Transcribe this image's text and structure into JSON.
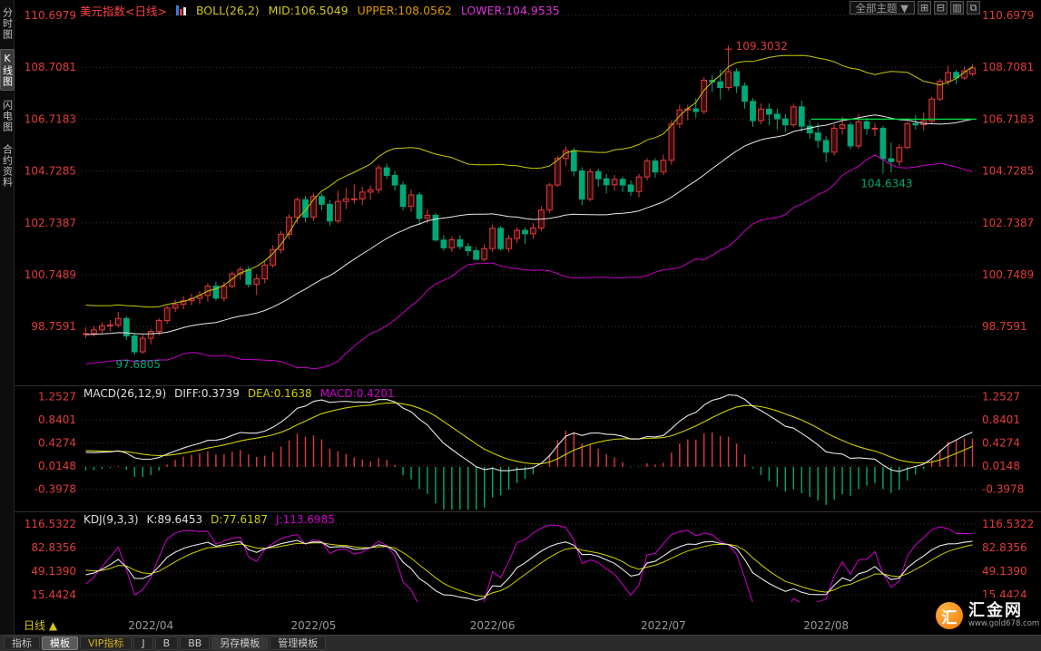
{
  "sidebar": {
    "items": [
      {
        "label": "分时图",
        "active": false
      },
      {
        "label": "K线图",
        "active": true
      },
      {
        "label": "闪电图",
        "active": false
      },
      {
        "label": "合约资料",
        "active": false
      }
    ]
  },
  "header": {
    "title": "美元指数<日线>",
    "boll": "BOLL(26,2)",
    "mid": "MID:106.5049",
    "upper": "UPPER:108.0562",
    "lower": "LOWER:104.9535",
    "theme": "全部主题 ▼",
    "window_icons": [
      {
        "name": "quad-grid",
        "glyph": "⊞"
      },
      {
        "name": "split-horizontal",
        "glyph": "⊟"
      },
      {
        "name": "panel-list",
        "glyph": "▥"
      },
      {
        "name": "new-window",
        "glyph": "⧉"
      }
    ]
  },
  "main_chart": {
    "y_labels": [
      "110.6979",
      "108.7081",
      "106.7183",
      "104.7285",
      "102.7387",
      "100.7489",
      "98.7591"
    ]
  },
  "macd": {
    "label": "MACD(26,12,9)",
    "diff": "DIFF:0.3739",
    "dea": "DEA:0.1638",
    "macd": "MACD:0.4201",
    "y_labels": [
      "1.2527",
      "0.8401",
      "0.4274",
      "0.0148",
      "-0.3978"
    ]
  },
  "kdj": {
    "label": "KDJ(9,3,3)",
    "k": "K:89.6453",
    "d": "D:77.6187",
    "j": "J:113.6985",
    "y_labels": [
      "116.5322",
      "82.8356",
      "49.1390",
      "15.4424"
    ]
  },
  "x_axis": {
    "labels": [
      "2022/04",
      "2022/05",
      "2022/06",
      "2022/07",
      "2022/08"
    ]
  },
  "bottom_bar": {
    "period": "日线 ▲",
    "tabs": [
      {
        "label": "指标"
      },
      {
        "label": "模板",
        "active": true
      },
      {
        "label": "VIP指标",
        "vip": true
      },
      {
        "label": "J"
      },
      {
        "label": "B"
      },
      {
        "label": "BB"
      },
      {
        "label": "另存模板",
        "raised": true
      },
      {
        "label": "管理模板"
      }
    ]
  },
  "logo": {
    "icon_char": "汇",
    "name": "汇金网",
    "url": "www.gold678.com"
  },
  "chart_data": {
    "type": "candlestick",
    "symbol": "美元指数",
    "period": "日线",
    "ylim": [
      96.5,
      111.2
    ],
    "visible_from": 15,
    "indicators": {
      "boll": {
        "period": 26,
        "width": 2,
        "mid": 106.5049,
        "upper": 108.0562,
        "lower": 104.9535
      },
      "macd": {
        "short": 12,
        "long": 26,
        "signal": 9,
        "diff": 0.3739,
        "dea": 0.1638,
        "macd": 0.4201
      },
      "kdj": {
        "period": 9,
        "k": 89.6453,
        "d": 77.6187,
        "j": 113.6985
      }
    },
    "annotations": [
      {
        "type": "high",
        "date": "2022-07-14",
        "text": "109.3032"
      },
      {
        "type": "low",
        "date": "2022-08-10",
        "text": "104.6343"
      },
      {
        "type": "low",
        "date": "2022-03-30",
        "text": "97.6805"
      },
      {
        "type": "hline",
        "value": 106.7183,
        "from_frac": 0.815,
        "to_frac": 1.0
      }
    ],
    "colors": {
      "up": "#e03a3a",
      "up_fill": "#3a0d0d",
      "down": "#00a878",
      "boll_mid": "#e8e8e8",
      "boll_upper": "#c8c800",
      "boll_lower": "#c800c8",
      "diff": "#e8e8e8",
      "dea": "#d0d000",
      "k": "#e8e8e8",
      "d": "#d0d000",
      "j": "#d000d0",
      "axis": "#e23b3b",
      "grid": "#4a2e2e",
      "date": "#9a9a9a",
      "hline": "#00d84a"
    },
    "ohlc": [
      [
        "2022-03-01",
        96.7,
        97.5,
        96.6,
        97.41
      ],
      [
        "2022-03-02",
        97.41,
        97.62,
        97.1,
        97.38
      ],
      [
        "2022-03-03",
        97.38,
        97.92,
        97.25,
        97.79
      ],
      [
        "2022-03-04",
        97.79,
        98.72,
        97.7,
        98.65
      ],
      [
        "2022-03-07",
        98.65,
        99.42,
        98.55,
        99.29
      ],
      [
        "2022-03-08",
        99.29,
        99.47,
        98.85,
        99.06
      ],
      [
        "2022-03-09",
        99.06,
        99.12,
        97.9,
        97.99
      ],
      [
        "2022-03-10",
        97.99,
        98.62,
        97.86,
        98.51
      ],
      [
        "2022-03-11",
        98.51,
        99.22,
        98.42,
        99.12
      ],
      [
        "2022-03-14",
        99.12,
        99.27,
        98.86,
        99.01
      ],
      [
        "2022-03-15",
        99.01,
        99.17,
        98.76,
        98.95
      ],
      [
        "2022-03-16",
        98.95,
        99.07,
        98.42,
        98.62
      ],
      [
        "2022-03-17",
        98.62,
        98.77,
        97.96,
        98.23
      ],
      [
        "2022-03-18",
        98.23,
        98.47,
        98.02,
        98.23
      ],
      [
        "2022-03-21",
        98.23,
        98.62,
        98.12,
        98.49
      ],
      [
        "2022-03-22",
        98.49,
        98.72,
        98.32,
        98.49
      ],
      [
        "2022-03-23",
        98.49,
        98.78,
        98.38,
        98.63
      ],
      [
        "2022-03-24",
        98.63,
        98.92,
        98.5,
        98.79
      ],
      [
        "2022-03-25",
        98.79,
        99.02,
        98.58,
        98.82
      ],
      [
        "2022-03-28",
        98.82,
        99.32,
        98.72,
        99.07
      ],
      [
        "2022-03-29",
        99.07,
        99.15,
        98.25,
        98.4
      ],
      [
        "2022-03-30",
        98.4,
        98.52,
        97.68,
        97.79
      ],
      [
        "2022-03-31",
        97.79,
        98.45,
        97.72,
        98.31
      ],
      [
        "2022-04-01",
        98.31,
        98.65,
        98.08,
        98.57
      ],
      [
        "2022-04-04",
        98.57,
        99.08,
        98.42,
        98.99
      ],
      [
        "2022-04-05",
        98.99,
        99.56,
        98.86,
        99.47
      ],
      [
        "2022-04-06",
        99.47,
        99.8,
        99.32,
        99.61
      ],
      [
        "2022-04-07",
        99.61,
        99.92,
        99.42,
        99.75
      ],
      [
        "2022-04-08",
        99.75,
        100.02,
        99.57,
        99.84
      ],
      [
        "2022-04-11",
        99.84,
        100.12,
        99.62,
        99.95
      ],
      [
        "2022-04-12",
        99.95,
        100.42,
        99.72,
        100.31
      ],
      [
        "2022-04-13",
        100.31,
        100.48,
        99.76,
        99.85
      ],
      [
        "2022-04-14",
        99.85,
        100.47,
        99.72,
        100.31
      ],
      [
        "2022-04-18",
        100.31,
        100.88,
        100.22,
        100.78
      ],
      [
        "2022-04-19",
        100.78,
        101.05,
        100.56,
        100.95
      ],
      [
        "2022-04-20",
        100.95,
        101.08,
        100.26,
        100.38
      ],
      [
        "2022-04-21",
        100.38,
        100.78,
        99.97,
        100.59
      ],
      [
        "2022-04-22",
        100.59,
        101.25,
        100.42,
        101.12
      ],
      [
        "2022-04-25",
        101.12,
        101.88,
        101.02,
        101.71
      ],
      [
        "2022-04-26",
        101.71,
        102.42,
        101.56,
        102.3
      ],
      [
        "2022-04-27",
        102.3,
        103.08,
        102.12,
        102.95
      ],
      [
        "2022-04-28",
        102.95,
        103.72,
        102.72,
        103.63
      ],
      [
        "2022-04-29",
        103.63,
        103.77,
        102.76,
        102.96
      ],
      [
        "2022-05-02",
        102.96,
        103.88,
        102.82,
        103.75
      ],
      [
        "2022-05-03",
        103.75,
        103.87,
        103.22,
        103.45
      ],
      [
        "2022-05-04",
        103.45,
        103.62,
        102.62,
        102.81
      ],
      [
        "2022-05-05",
        102.81,
        103.97,
        102.72,
        103.56
      ],
      [
        "2022-05-06",
        103.56,
        104.07,
        103.27,
        103.66
      ],
      [
        "2022-05-09",
        103.66,
        104.22,
        103.47,
        103.66
      ],
      [
        "2022-05-10",
        103.66,
        104.12,
        103.42,
        103.92
      ],
      [
        "2022-05-11",
        103.92,
        104.17,
        103.62,
        104.01
      ],
      [
        "2022-05-12",
        104.01,
        104.97,
        103.87,
        104.85
      ],
      [
        "2022-05-13",
        104.85,
        105.01,
        104.42,
        104.56
      ],
      [
        "2022-05-16",
        104.56,
        104.72,
        103.97,
        104.19
      ],
      [
        "2022-05-17",
        104.19,
        104.32,
        103.22,
        103.37
      ],
      [
        "2022-05-18",
        103.37,
        104.02,
        103.17,
        103.81
      ],
      [
        "2022-05-19",
        103.81,
        103.92,
        102.67,
        102.91
      ],
      [
        "2022-05-20",
        102.91,
        103.27,
        102.72,
        103.03
      ],
      [
        "2022-05-23",
        103.03,
        103.12,
        102.02,
        102.08
      ],
      [
        "2022-05-24",
        102.08,
        102.27,
        101.67,
        101.78
      ],
      [
        "2022-05-25",
        101.78,
        102.22,
        101.62,
        102.09
      ],
      [
        "2022-05-26",
        102.09,
        102.27,
        101.72,
        101.83
      ],
      [
        "2022-05-27",
        101.83,
        101.97,
        101.47,
        101.67
      ],
      [
        "2022-05-30",
        101.67,
        101.82,
        101.32,
        101.34
      ],
      [
        "2022-05-31",
        101.34,
        101.92,
        101.27,
        101.75
      ],
      [
        "2022-06-01",
        101.75,
        102.67,
        101.62,
        102.53
      ],
      [
        "2022-06-02",
        102.53,
        102.62,
        101.67,
        101.75
      ],
      [
        "2022-06-03",
        101.75,
        102.27,
        101.62,
        102.14
      ],
      [
        "2022-06-06",
        102.14,
        102.57,
        101.97,
        102.45
      ],
      [
        "2022-06-07",
        102.45,
        102.57,
        101.92,
        102.32
      ],
      [
        "2022-06-08",
        102.32,
        102.72,
        102.12,
        102.54
      ],
      [
        "2022-06-09",
        102.54,
        103.37,
        102.42,
        103.23
      ],
      [
        "2022-06-10",
        103.23,
        104.27,
        103.12,
        104.19
      ],
      [
        "2022-06-13",
        104.19,
        105.32,
        104.12,
        105.21
      ],
      [
        "2022-06-14",
        105.21,
        105.67,
        104.92,
        105.51
      ],
      [
        "2022-06-15",
        105.51,
        105.62,
        104.52,
        104.73
      ],
      [
        "2022-06-16",
        104.73,
        104.87,
        103.42,
        103.65
      ],
      [
        "2022-06-17",
        103.65,
        104.82,
        103.57,
        104.7
      ],
      [
        "2022-06-21",
        104.7,
        104.82,
        104.12,
        104.43
      ],
      [
        "2022-06-22",
        104.43,
        104.62,
        103.87,
        104.2
      ],
      [
        "2022-06-23",
        104.2,
        104.57,
        103.97,
        104.41
      ],
      [
        "2022-06-24",
        104.41,
        104.52,
        103.92,
        104.19
      ],
      [
        "2022-06-27",
        104.19,
        104.37,
        103.77,
        103.94
      ],
      [
        "2022-06-28",
        103.94,
        104.62,
        103.72,
        104.5
      ],
      [
        "2022-06-29",
        104.5,
        105.22,
        104.37,
        105.11
      ],
      [
        "2022-06-30",
        105.11,
        105.22,
        104.47,
        104.69
      ],
      [
        "2022-07-01",
        104.69,
        105.37,
        104.57,
        105.14
      ],
      [
        "2022-07-05",
        105.14,
        106.67,
        104.97,
        106.53
      ],
      [
        "2022-07-06",
        106.53,
        107.27,
        106.37,
        107.07
      ],
      [
        "2022-07-07",
        107.07,
        107.27,
        106.67,
        107.11
      ],
      [
        "2022-07-08",
        107.11,
        107.52,
        106.77,
        107.01
      ],
      [
        "2022-07-11",
        107.01,
        108.32,
        106.92,
        108.21
      ],
      [
        "2022-07-12",
        108.21,
        108.42,
        107.77,
        108.15
      ],
      [
        "2022-07-13",
        108.15,
        108.62,
        107.47,
        107.93
      ],
      [
        "2022-07-14",
        107.93,
        109.3,
        107.82,
        108.54
      ],
      [
        "2022-07-15",
        108.54,
        108.67,
        107.72,
        107.99
      ],
      [
        "2022-07-18",
        107.99,
        108.12,
        107.12,
        107.4
      ],
      [
        "2022-07-19",
        107.4,
        107.52,
        106.42,
        106.66
      ],
      [
        "2022-07-20",
        106.66,
        107.32,
        106.52,
        107.1
      ],
      [
        "2022-07-21",
        107.1,
        107.32,
        106.47,
        106.91
      ],
      [
        "2022-07-22",
        106.91,
        107.12,
        106.32,
        106.73
      ],
      [
        "2022-07-25",
        106.73,
        106.92,
        106.22,
        106.5
      ],
      [
        "2022-07-26",
        106.5,
        107.32,
        106.42,
        107.19
      ],
      [
        "2022-07-27",
        107.19,
        107.42,
        106.22,
        106.45
      ],
      [
        "2022-07-28",
        106.45,
        106.67,
        105.97,
        106.19
      ],
      [
        "2022-07-29",
        106.19,
        106.57,
        105.62,
        105.9
      ],
      [
        "2022-08-01",
        105.9,
        106.07,
        105.07,
        105.45
      ],
      [
        "2022-08-02",
        105.45,
        106.52,
        105.32,
        106.37
      ],
      [
        "2022-08-03",
        106.37,
        106.82,
        106.12,
        106.5
      ],
      [
        "2022-08-04",
        106.5,
        106.62,
        105.57,
        105.69
      ],
      [
        "2022-08-05",
        105.69,
        106.92,
        105.57,
        106.62
      ],
      [
        "2022-08-08",
        106.62,
        106.77,
        106.12,
        106.36
      ],
      [
        "2022-08-09",
        106.36,
        106.57,
        106.07,
        106.37
      ],
      [
        "2022-08-10",
        106.37,
        106.47,
        104.63,
        105.2
      ],
      [
        "2022-08-11",
        105.2,
        105.82,
        104.67,
        105.09
      ],
      [
        "2022-08-12",
        105.09,
        105.77,
        104.92,
        105.63
      ],
      [
        "2022-08-15",
        105.63,
        106.62,
        105.57,
        106.55
      ],
      [
        "2022-08-16",
        106.55,
        106.87,
        106.32,
        106.5
      ],
      [
        "2022-08-17",
        106.5,
        106.97,
        106.27,
        106.65
      ],
      [
        "2022-08-18",
        106.65,
        107.57,
        106.52,
        107.49
      ],
      [
        "2022-08-19",
        107.49,
        108.27,
        107.42,
        108.17
      ],
      [
        "2022-08-22",
        108.17,
        108.77,
        108.02,
        108.51
      ],
      [
        "2022-08-23",
        108.51,
        108.62,
        108.07,
        108.3
      ],
      [
        "2022-08-24",
        108.3,
        108.74,
        108.22,
        108.57
      ],
      [
        "2022-08-25",
        108.45,
        108.84,
        108.37,
        108.68
      ]
    ]
  }
}
